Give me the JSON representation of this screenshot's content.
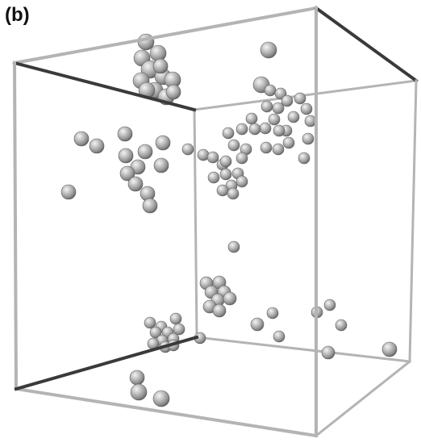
{
  "figure": {
    "panel_label": "(b)"
  },
  "colors": {
    "background": "#ffffff",
    "box_edge_light": "#b4b4b4",
    "box_edge_dark": "#3a3a3a",
    "sphere_base": "#a6a6a6",
    "sphere_highlight": "#f2f2f2",
    "sphere_shadow": "#5e5e5e"
  }
}
